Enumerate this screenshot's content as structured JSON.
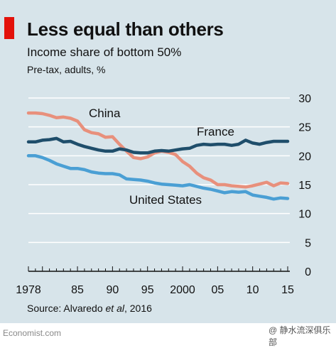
{
  "header": {
    "title": "Less equal than others",
    "subtitle": "Income share of bottom 50%",
    "subtitle2": "Pre-tax, adults, %"
  },
  "source": {
    "prefix": "Source: Alvaredo ",
    "italic": "et al",
    "suffix": ", 2016"
  },
  "brand": "Economist.com",
  "watermark": "@ 静水流深俱乐部",
  "colors": {
    "background": "#d7e4ea",
    "china": "#e8907c",
    "france": "#1f4e6b",
    "united_states": "#4a9fd4",
    "accent": "#e3120b"
  },
  "chart_data": {
    "type": "line",
    "title": "Less equal than others",
    "xlabel": "",
    "ylabel": "",
    "xlim": [
      1978,
      2015
    ],
    "ylim": [
      0,
      30
    ],
    "y_ticks": [
      0,
      5,
      10,
      15,
      20,
      25,
      30
    ],
    "x_tick_labels": [
      "1978",
      "85",
      "90",
      "95",
      "2000",
      "05",
      "10",
      "15"
    ],
    "x_tick_values": [
      1978,
      1985,
      1990,
      1995,
      2000,
      2005,
      2010,
      2015
    ],
    "y_axis_side": "right",
    "grid": true,
    "series": [
      {
        "name": "China",
        "x": [
          1978,
          1979,
          1980,
          1981,
          1982,
          1983,
          1984,
          1985,
          1986,
          1987,
          1988,
          1989,
          1990,
          1991,
          1992,
          1993,
          1994,
          1995,
          1996,
          1997,
          1998,
          1999,
          2000,
          2001,
          2002,
          2003,
          2004,
          2005,
          2006,
          2007,
          2008,
          2009,
          2010,
          2011,
          2012,
          2013,
          2014,
          2015
        ],
        "values": [
          27.4,
          27.4,
          27.3,
          27.0,
          26.6,
          26.7,
          26.5,
          26.0,
          24.5,
          24.0,
          23.8,
          23.2,
          23.3,
          22.0,
          20.8,
          19.7,
          19.5,
          19.8,
          20.5,
          20.8,
          20.6,
          20.2,
          19.0,
          18.2,
          17.0,
          16.2,
          15.8,
          15.0,
          15.0,
          14.8,
          14.7,
          14.6,
          14.8,
          15.1,
          15.4,
          14.8,
          15.3,
          15.2
        ]
      },
      {
        "name": "France",
        "x": [
          1978,
          1979,
          1980,
          1981,
          1982,
          1983,
          1984,
          1985,
          1986,
          1987,
          1988,
          1989,
          1990,
          1991,
          1992,
          1993,
          1994,
          1995,
          1996,
          1997,
          1998,
          1999,
          2000,
          2001,
          2002,
          2003,
          2004,
          2005,
          2006,
          2007,
          2008,
          2009,
          2010,
          2011,
          2012,
          2013,
          2014,
          2015
        ],
        "values": [
          22.4,
          22.4,
          22.7,
          22.8,
          23.0,
          22.4,
          22.5,
          22.0,
          21.6,
          21.3,
          21.0,
          20.8,
          20.8,
          21.2,
          21.0,
          20.6,
          20.5,
          20.5,
          20.8,
          20.9,
          20.8,
          21.0,
          21.2,
          21.3,
          21.8,
          22.0,
          21.9,
          22.0,
          22.0,
          21.8,
          22.0,
          22.7,
          22.2,
          22.0,
          22.3,
          22.5,
          22.5,
          22.5
        ]
      },
      {
        "name": "United States",
        "x": [
          1978,
          1979,
          1980,
          1981,
          1982,
          1983,
          1984,
          1985,
          1986,
          1987,
          1988,
          1989,
          1990,
          1991,
          1992,
          1993,
          1994,
          1995,
          1996,
          1997,
          1998,
          1999,
          2000,
          2001,
          2002,
          2003,
          2004,
          2005,
          2006,
          2007,
          2008,
          2009,
          2010,
          2011,
          2012,
          2013,
          2014,
          2015
        ],
        "values": [
          20.0,
          20.0,
          19.7,
          19.2,
          18.6,
          18.2,
          17.8,
          17.8,
          17.6,
          17.2,
          17.0,
          16.9,
          16.9,
          16.7,
          16.0,
          15.9,
          15.8,
          15.6,
          15.3,
          15.1,
          15.0,
          14.9,
          14.8,
          15.0,
          14.7,
          14.4,
          14.2,
          13.9,
          13.6,
          13.8,
          13.7,
          13.8,
          13.2,
          13.0,
          12.8,
          12.5,
          12.7,
          12.6
        ]
      }
    ],
    "series_labels": [
      "China",
      "France",
      "United States"
    ]
  }
}
